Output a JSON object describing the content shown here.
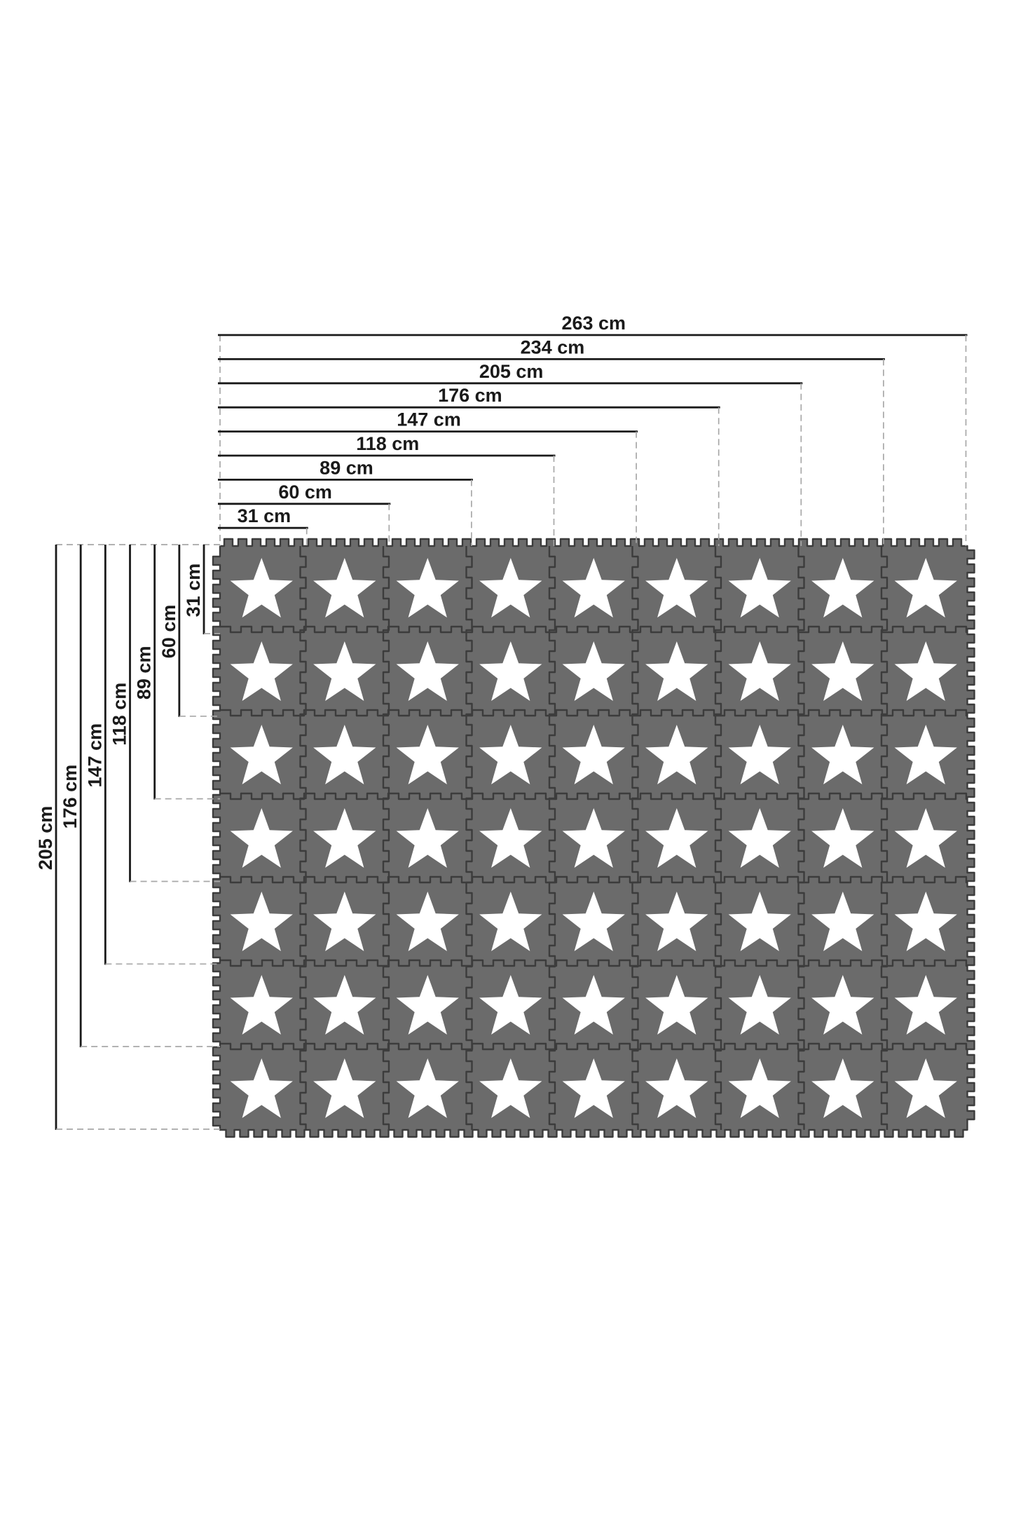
{
  "diagram": {
    "unit": "cm",
    "background_color": "#ffffff",
    "mat": {
      "rows": 7,
      "columns": 9,
      "pattern": "star-tile",
      "tile_color": "#6b6b6b",
      "seam_color": "#3c3c3c",
      "star_color": "#ffffff"
    },
    "dimension_style": {
      "line_color": "#1a1a1a",
      "text_color": "#1a1a1a",
      "dash_color": "#a8a8a8"
    },
    "horizontal_dimensions": [
      {
        "label": "263 cm",
        "cm": 263
      },
      {
        "label": "234 cm",
        "cm": 234
      },
      {
        "label": "205 cm",
        "cm": 205
      },
      {
        "label": "176 cm",
        "cm": 176
      },
      {
        "label": "147 cm",
        "cm": 147
      },
      {
        "label": "118 cm",
        "cm": 118
      },
      {
        "label": "89 cm",
        "cm": 89
      },
      {
        "label": "60 cm",
        "cm": 60
      },
      {
        "label": "31 cm",
        "cm": 31
      }
    ],
    "vertical_dimensions": [
      {
        "label": "205 cm",
        "cm": 205
      },
      {
        "label": "176 cm",
        "cm": 176
      },
      {
        "label": "147 cm",
        "cm": 147
      },
      {
        "label": "118 cm",
        "cm": 118
      },
      {
        "label": "89 cm",
        "cm": 89
      },
      {
        "label": "60 cm",
        "cm": 60
      },
      {
        "label": "31 cm",
        "cm": 31
      }
    ]
  }
}
